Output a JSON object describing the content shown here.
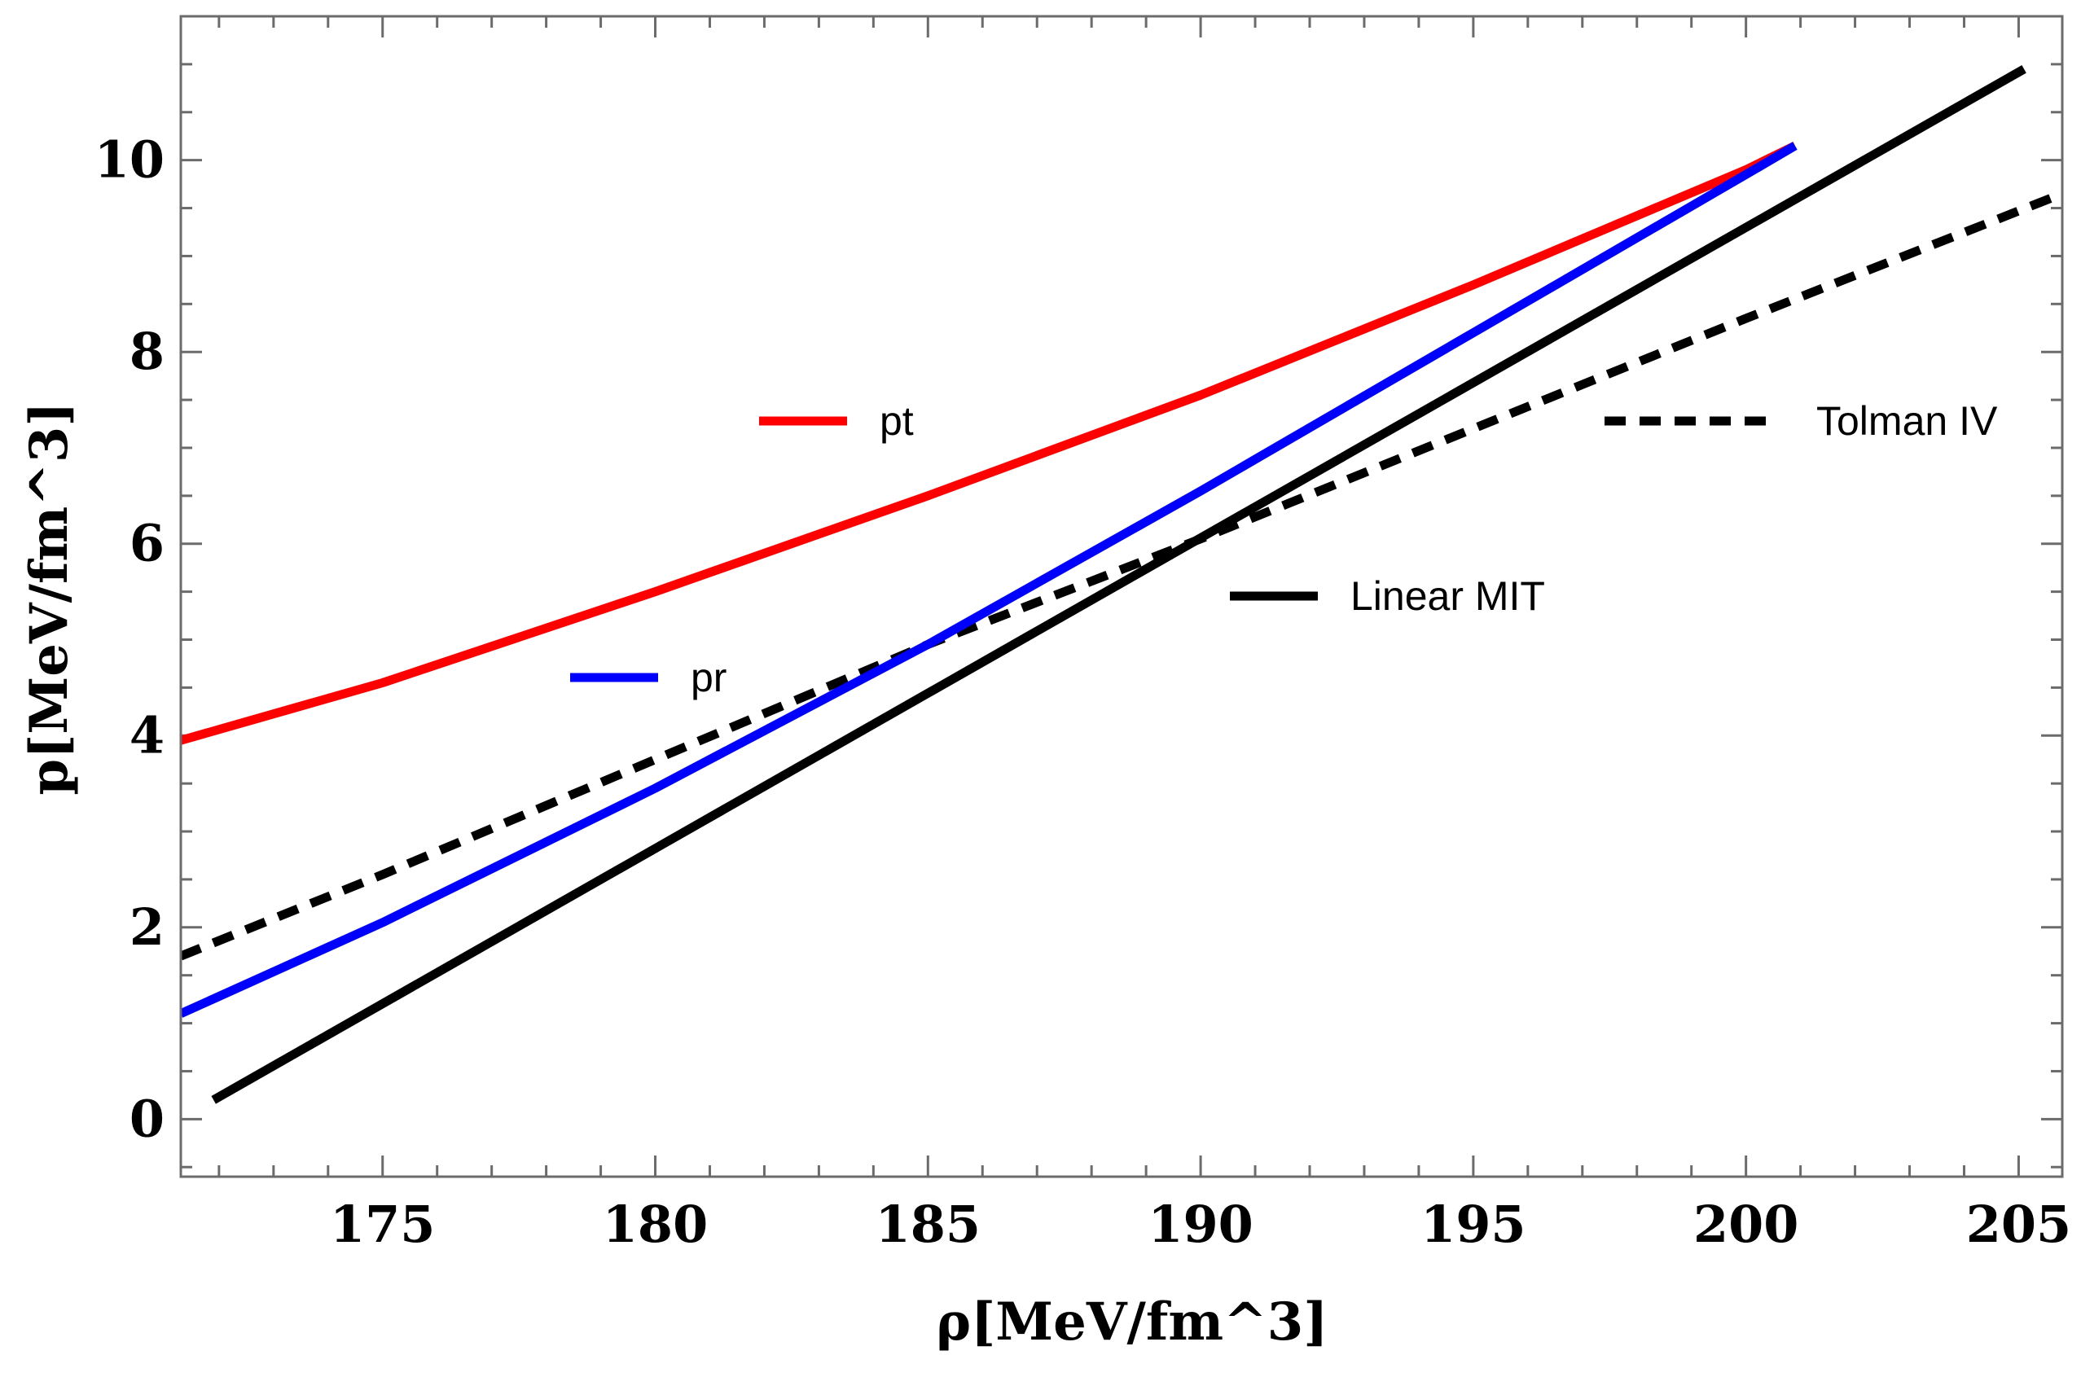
{
  "chart_data": {
    "type": "line",
    "title": "",
    "xlabel": "ρ[MeV/fm^3]",
    "ylabel": "p[MeV/fm^3]",
    "xlim": [
      171.3,
      205.8
    ],
    "ylim": [
      -0.6,
      11.5
    ],
    "x_ticks": [
      175,
      180,
      185,
      190,
      195,
      200,
      205
    ],
    "y_ticks": [
      0,
      2,
      4,
      6,
      8,
      10
    ],
    "grid": false,
    "series": [
      {
        "name": "pt",
        "color": "#ff0000",
        "dash": "solid",
        "x": [
          171.3,
          175,
          180,
          185,
          190,
          195,
          200,
          200.9
        ],
        "y": [
          3.95,
          4.55,
          5.5,
          6.5,
          7.55,
          8.7,
          9.9,
          10.15
        ]
      },
      {
        "name": "pr",
        "color": "#0000ff",
        "dash": "solid",
        "x": [
          171.3,
          175,
          180,
          185,
          190,
          195,
          200,
          200.9
        ],
        "y": [
          1.1,
          2.05,
          3.45,
          4.95,
          6.55,
          8.2,
          9.85,
          10.15
        ]
      },
      {
        "name": "Tolman IV",
        "color": "#000000",
        "dash": "dashed",
        "x": [
          171.3,
          175,
          180,
          185,
          190,
          195,
          200,
          205.8
        ],
        "y": [
          1.7,
          2.55,
          3.75,
          4.95,
          6.05,
          7.2,
          8.35,
          9.65
        ]
      },
      {
        "name": "Linear MIT",
        "color": "#000000",
        "dash": "solid",
        "x": [
          171.9,
          205.1
        ],
        "y": [
          0.2,
          10.95
        ]
      }
    ],
    "legend": [
      {
        "name": "pt",
        "label": "pt"
      },
      {
        "name": "pr",
        "label": "pr"
      },
      {
        "name": "Tolman IV",
        "label": "Tolman IV"
      },
      {
        "name": "Linear MIT",
        "label": "Linear MIT"
      }
    ]
  }
}
